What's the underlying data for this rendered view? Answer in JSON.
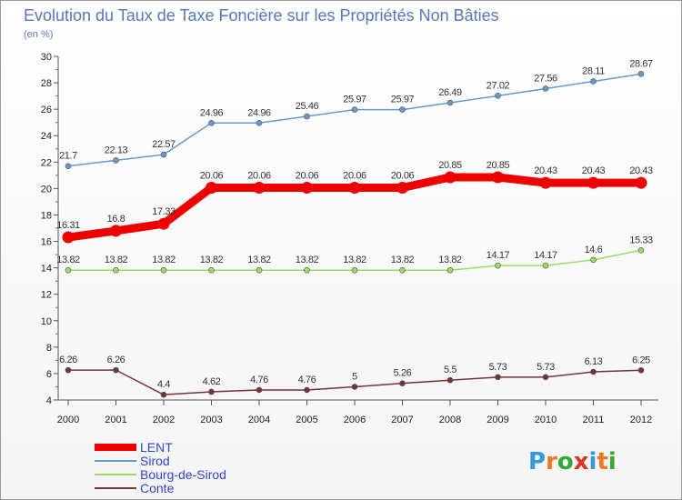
{
  "chart_data": {
    "type": "line",
    "title": "Evolution du Taux de Taxe Foncière sur les Propriétés Non Bâties",
    "subtitle": "(en %)",
    "x": [
      "2000",
      "2001",
      "2002",
      "2003",
      "2004",
      "2005",
      "2006",
      "2007",
      "2008",
      "2009",
      "2010",
      "2011",
      "2012"
    ],
    "ylim": [
      4,
      30
    ],
    "yticks": [
      4,
      6,
      8,
      10,
      12,
      14,
      16,
      18,
      20,
      22,
      24,
      26,
      28,
      30
    ],
    "grid": false,
    "legend_position": "bottom-left",
    "series": [
      {
        "name": "LENT",
        "color": "#ee0000",
        "values": [
          16.31,
          16.8,
          17.33,
          20.06,
          20.06,
          20.06,
          20.06,
          20.06,
          20.85,
          20.85,
          20.43,
          20.43,
          20.43
        ],
        "labels": [
          "16.31",
          "16.8",
          "17.33",
          "20.06",
          "20.06",
          "20.06",
          "20.06",
          "20.06",
          "20.85",
          "20.85",
          "20.43",
          "20.43",
          "20.43"
        ]
      },
      {
        "name": "Sirod",
        "color": "#6699cc",
        "values": [
          21.7,
          22.13,
          22.57,
          24.96,
          24.96,
          25.46,
          25.97,
          25.97,
          26.49,
          27.02,
          27.56,
          28.11,
          28.67
        ],
        "labels": [
          "21.7",
          "22.13",
          "22.57",
          "24.96",
          "24.96",
          "25.46",
          "25.97",
          "25.97",
          "26.49",
          "27.02",
          "27.56",
          "28.11",
          "28.67"
        ]
      },
      {
        "name": "Bourg-de-Sirod",
        "color": "#99dd66",
        "values": [
          13.82,
          13.82,
          13.82,
          13.82,
          13.82,
          13.82,
          13.82,
          13.82,
          13.82,
          14.17,
          14.17,
          14.6,
          15.33
        ],
        "labels": [
          "13.82",
          "13.82",
          "13.82",
          "13.82",
          "13.82",
          "13.82",
          "13.82",
          "13.82",
          "13.82",
          "14.17",
          "14.17",
          "14.6",
          "15.33"
        ]
      },
      {
        "name": "Conte",
        "color": "#773333",
        "values": [
          6.26,
          6.26,
          4.4,
          4.62,
          4.76,
          4.76,
          5,
          5.26,
          5.5,
          5.73,
          5.73,
          6.13,
          6.25
        ],
        "labels": [
          "6.26",
          "6.26",
          "4.4",
          "4.62",
          "4.76",
          "4.76",
          "5",
          "5.26",
          "5.5",
          "5.73",
          "5.73",
          "6.13",
          "6.25"
        ]
      }
    ]
  },
  "logo": {
    "text": "Proxiti",
    "letters": [
      "P",
      "r",
      "o",
      "x",
      "i",
      "t",
      "i"
    ],
    "colors": [
      "#3399dd",
      "#ee7722",
      "#33aa33",
      "#dd3322",
      "#3399dd",
      "#ee7722",
      "#33aa33"
    ]
  }
}
